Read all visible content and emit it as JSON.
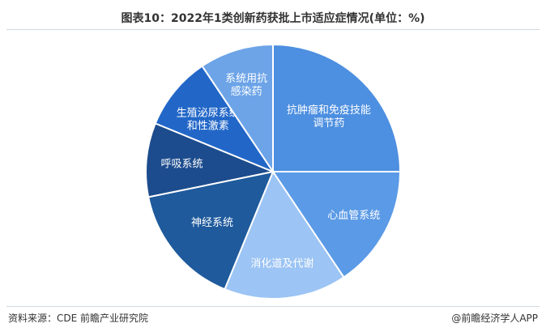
{
  "title": "图表10：2022年1类创新药获批上市适应症情况(单位：%)",
  "footer": {
    "source": "资料来源：CDE 前瞻产业研究院",
    "brand": "@前瞻经济学人APP"
  },
  "chart_data": {
    "type": "pie",
    "title": "图表10：2022年1类创新药获批上市适应症情况(单位：%)",
    "unit": "%",
    "slices": [
      {
        "label_lines": [
          "抗肿瘤和免疫技能",
          "调节药"
        ],
        "value": 25.0,
        "color": "#4d8fe0"
      },
      {
        "label_lines": [
          "心血管系统"
        ],
        "value": 15.6,
        "color": "#5b9ae6"
      },
      {
        "label_lines": [
          "消化道及代谢"
        ],
        "value": 15.6,
        "color": "#9cc4f4"
      },
      {
        "label_lines": [
          "神经系统"
        ],
        "value": 15.6,
        "color": "#1e5a9c"
      },
      {
        "label_lines": [
          "呼吸系统"
        ],
        "value": 9.4,
        "color": "#1c4c8d"
      },
      {
        "label_lines": [
          "生殖泌尿系统",
          "和性激素"
        ],
        "value": 9.4,
        "color": "#2267c8"
      },
      {
        "label_lines": [
          "系统用抗",
          "感染药"
        ],
        "value": 9.4,
        "color": "#6da4e8"
      }
    ]
  }
}
